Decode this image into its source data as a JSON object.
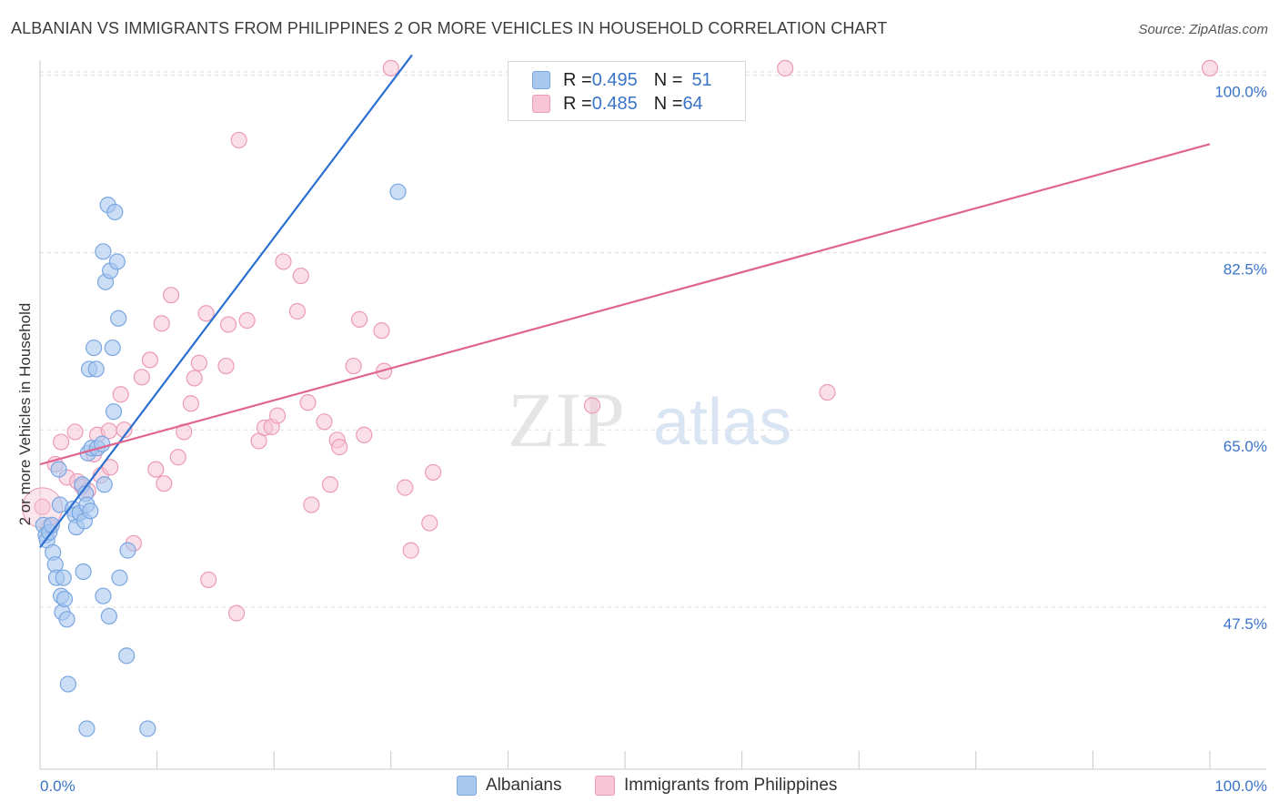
{
  "title": "ALBANIAN VS IMMIGRANTS FROM PHILIPPINES 2 OR MORE VEHICLES IN HOUSEHOLD CORRELATION CHART",
  "source": "Source: ZipAtlas.com",
  "watermark": {
    "zip": "ZIP",
    "atlas": "atlas"
  },
  "legend": {
    "rows": [
      {
        "r_label": "R = ",
        "r_value": "0.495",
        "n_label": "N = ",
        "n_value": "51"
      },
      {
        "r_label": "R = ",
        "r_value": "0.485",
        "n_label": "N = ",
        "n_value": "64"
      }
    ]
  },
  "bottom_legend": [
    "Albanians",
    "Immigrants from Philippines"
  ],
  "colors": {
    "blue_fill": "#a9c8f0",
    "blue_stroke": "#7aa6e0",
    "blue_line": "#2a6fd1",
    "pink_fill": "#f7c5d5",
    "pink_stroke": "#ec9ab5",
    "pink_line": "#e0648f",
    "tick_text": "#3a74c9",
    "grid": "#dedede"
  },
  "chart_data": {
    "type": "scatter",
    "title": "ALBANIAN VS IMMIGRANTS FROM PHILIPPINES 2 OR MORE VEHICLES IN HOUSEHOLD CORRELATION CHART",
    "xlabel": "",
    "ylabel": "2 or more Vehicles in Household",
    "xlim": [
      0,
      100
    ],
    "ylim": [
      31.5,
      101.5
    ],
    "x_tick_labels": [
      "0.0%",
      "100.0%"
    ],
    "y_ticks": [
      47.5,
      65.0,
      82.5,
      100.0
    ],
    "y_tick_labels": [
      "47.5%",
      "65.0%",
      "82.5%",
      "100.0%"
    ],
    "series": [
      {
        "name": "Albanians",
        "color": "#a9c8f0",
        "trend": {
          "x0": 0,
          "y0": 53.4,
          "x1": 31.8,
          "y1": 102.0
        },
        "points": [
          [
            0.3,
            55.6
          ],
          [
            0.5,
            54.6
          ],
          [
            0.6,
            54.1
          ],
          [
            0.8,
            54.9
          ],
          [
            1.0,
            55.6
          ],
          [
            1.1,
            52.9
          ],
          [
            1.3,
            51.7
          ],
          [
            1.4,
            50.4
          ],
          [
            1.6,
            61.1
          ],
          [
            1.7,
            57.6
          ],
          [
            1.8,
            48.6
          ],
          [
            1.9,
            47.0
          ],
          [
            2.0,
            50.4
          ],
          [
            2.1,
            48.3
          ],
          [
            2.3,
            46.3
          ],
          [
            2.4,
            39.9
          ],
          [
            2.8,
            57.2
          ],
          [
            3.0,
            56.6
          ],
          [
            3.1,
            55.4
          ],
          [
            3.4,
            56.8
          ],
          [
            3.6,
            59.6
          ],
          [
            3.7,
            51.0
          ],
          [
            3.8,
            56.0
          ],
          [
            3.9,
            58.7
          ],
          [
            4.0,
            57.6
          ],
          [
            4.0,
            35.5
          ],
          [
            4.1,
            62.7
          ],
          [
            4.2,
            71.0
          ],
          [
            4.3,
            57.0
          ],
          [
            4.4,
            63.2
          ],
          [
            4.6,
            73.1
          ],
          [
            4.8,
            71.0
          ],
          [
            4.9,
            63.2
          ],
          [
            5.3,
            63.6
          ],
          [
            5.4,
            48.6
          ],
          [
            5.4,
            82.6
          ],
          [
            5.5,
            59.6
          ],
          [
            5.6,
            79.6
          ],
          [
            5.8,
            87.2
          ],
          [
            5.9,
            46.6
          ],
          [
            6.0,
            80.7
          ],
          [
            6.2,
            73.1
          ],
          [
            6.3,
            66.8
          ],
          [
            6.4,
            86.5
          ],
          [
            6.6,
            81.6
          ],
          [
            6.7,
            76.0
          ],
          [
            6.8,
            50.4
          ],
          [
            7.4,
            42.7
          ],
          [
            7.5,
            53.1
          ],
          [
            9.2,
            35.5
          ],
          [
            30.6,
            88.5
          ]
        ]
      },
      {
        "name": "Immigrants from Philippines",
        "color": "#f7c5d5",
        "trend": {
          "x0": 0,
          "y0": 61.6,
          "x1": 100,
          "y1": 93.2
        }
      }
    ]
  }
}
